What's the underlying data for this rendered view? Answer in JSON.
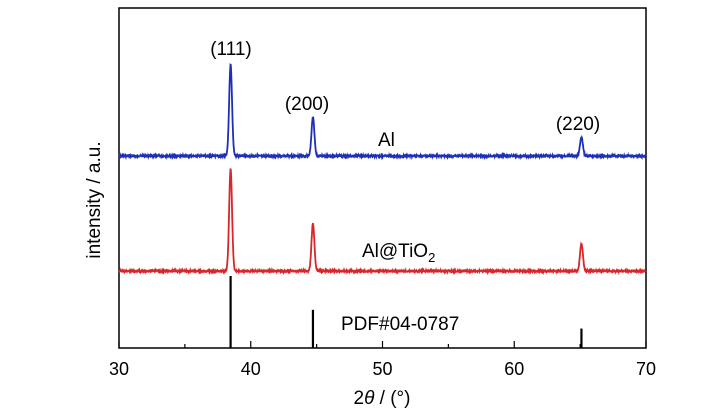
{
  "chart_data": {
    "type": "line",
    "xlabel": "2θ / (°)",
    "ylabel": "intensity / a.u.",
    "xlim": [
      30,
      70
    ],
    "x_ticks": [
      "30",
      "40",
      "50",
      "60",
      "70"
    ],
    "grid": false,
    "series": [
      {
        "name": "Al",
        "color": "#1f2fb8",
        "peaks": [
          {
            "x": 38.47,
            "height": 0.83
          },
          {
            "x": 44.72,
            "height": 0.35
          },
          {
            "x": 65.1,
            "height": 0.17
          }
        ]
      },
      {
        "name_main": "Al@TiO",
        "name_sub": "2",
        "color": "#d9262b",
        "peaks": [
          {
            "x": 38.47,
            "height": 0.93
          },
          {
            "x": 44.72,
            "height": 0.43
          },
          {
            "x": 65.1,
            "height": 0.25
          }
        ]
      }
    ],
    "reference": {
      "name": "PDF#04-0787",
      "color": "#000000",
      "lines": [
        {
          "x": 38.47,
          "intensity": 1.0
        },
        {
          "x": 44.72,
          "intensity": 0.53
        },
        {
          "x": 65.1,
          "intensity": 0.27
        }
      ]
    },
    "peak_labels": [
      {
        "text": "(111)",
        "x": 38.47
      },
      {
        "text": "(200)",
        "x": 44.72
      },
      {
        "text": "(220)",
        "x": 65.1
      }
    ]
  }
}
